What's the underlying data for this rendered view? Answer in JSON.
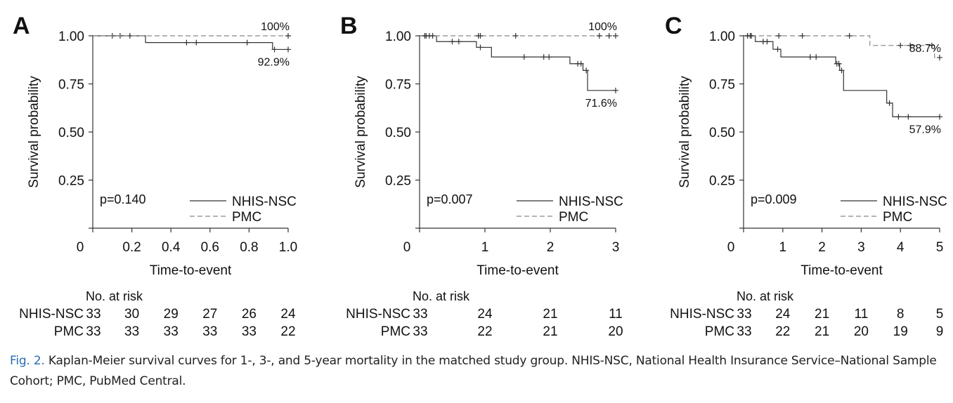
{
  "chart_data": [
    {
      "type": "line",
      "panel_label": "A",
      "ylabel": "Survival probability",
      "xlabel": "Time-to-event",
      "xlim": [
        0,
        1.0
      ],
      "ylim": [
        0,
        1.0
      ],
      "x_ticks": [
        "0",
        "0.2",
        "0.4",
        "0.6",
        "0.8",
        "1.0"
      ],
      "y_ticks": [
        "1.00",
        "0.75",
        "0.50",
        "0.25"
      ],
      "p_value": "p=0.140",
      "legend_position": "bottom-right",
      "series": [
        {
          "name": "NHIS-NSC",
          "style": "solid",
          "steps": [
            [
              0,
              1.0
            ],
            [
              0.27,
              0.965
            ],
            [
              0.92,
              0.929
            ],
            [
              1.0,
              0.929
            ]
          ],
          "censors": [
            [
              0.1,
              1.0
            ],
            [
              0.14,
              1.0
            ],
            [
              0.19,
              1.0
            ],
            [
              0.48,
              0.965
            ],
            [
              0.53,
              0.965
            ],
            [
              0.79,
              0.965
            ],
            [
              0.93,
              0.929
            ],
            [
              1.0,
              0.929
            ]
          ],
          "end_label": "92.9%"
        },
        {
          "name": "PMC",
          "style": "dashed",
          "steps": [
            [
              0,
              1.0
            ],
            [
              1.0,
              1.0
            ]
          ],
          "censors": [
            [
              1.0,
              1.0
            ]
          ],
          "end_label": "100%"
        }
      ],
      "risk_table": {
        "header": "No. at risk",
        "times": [
          0,
          0.2,
          0.4,
          0.6,
          0.8,
          1.0
        ],
        "rows": [
          {
            "label": "NHIS-NSC",
            "values": [
              "33",
              "30",
              "29",
              "27",
              "26",
              "24"
            ]
          },
          {
            "label": "PMC",
            "values": [
              "33",
              "33",
              "33",
              "33",
              "33",
              "22"
            ]
          }
        ]
      }
    },
    {
      "type": "line",
      "panel_label": "B",
      "ylabel": "Survival probability",
      "xlabel": "Time-to-event",
      "xlim": [
        0,
        3
      ],
      "ylim": [
        0,
        1.0
      ],
      "x_ticks": [
        "0",
        "1",
        "2",
        "3"
      ],
      "y_ticks": [
        "1.00",
        "0.75",
        "0.50",
        "0.25"
      ],
      "p_value": "p=0.007",
      "legend_position": "bottom-right",
      "series": [
        {
          "name": "NHIS-NSC",
          "style": "solid",
          "steps": [
            [
              0,
              1.0
            ],
            [
              0.26,
              0.97
            ],
            [
              0.87,
              0.94
            ],
            [
              1.1,
              0.89
            ],
            [
              2.3,
              0.855
            ],
            [
              2.5,
              0.82
            ],
            [
              2.57,
              0.716
            ],
            [
              3.0,
              0.716
            ]
          ],
          "censors": [
            [
              0.1,
              1.0
            ],
            [
              0.2,
              1.0
            ],
            [
              0.5,
              0.97
            ],
            [
              0.6,
              0.97
            ],
            [
              0.93,
              0.94
            ],
            [
              1.6,
              0.89
            ],
            [
              1.9,
              0.89
            ],
            [
              1.98,
              0.89
            ],
            [
              2.42,
              0.855
            ],
            [
              2.47,
              0.855
            ],
            [
              2.55,
              0.82
            ],
            [
              3.0,
              0.716
            ]
          ],
          "end_label": "71.6%"
        },
        {
          "name": "PMC",
          "style": "dashed",
          "steps": [
            [
              0,
              1.0
            ],
            [
              3.0,
              1.0
            ]
          ],
          "censors": [
            [
              0.08,
              1.0
            ],
            [
              0.15,
              1.0
            ],
            [
              0.9,
              1.0
            ],
            [
              0.93,
              1.0
            ],
            [
              1.47,
              1.0
            ],
            [
              2.75,
              1.0
            ],
            [
              2.9,
              1.0
            ],
            [
              3.0,
              1.0
            ]
          ],
          "end_label": "100%"
        }
      ],
      "risk_table": {
        "header": "No. at risk",
        "times": [
          0,
          1,
          2,
          3
        ],
        "rows": [
          {
            "label": "NHIS-NSC",
            "values": [
              "33",
              "24",
              "21",
              "11"
            ]
          },
          {
            "label": "PMC",
            "values": [
              "33",
              "22",
              "21",
              "20"
            ]
          }
        ]
      }
    },
    {
      "type": "line",
      "panel_label": "C",
      "ylabel": "Survival probability",
      "xlabel": "Time-to-event",
      "xlim": [
        0,
        5
      ],
      "ylim": [
        0,
        1.0
      ],
      "x_ticks": [
        "0",
        "1",
        "2",
        "3",
        "4",
        "5"
      ],
      "y_ticks": [
        "1.00",
        "0.75",
        "0.50",
        "0.25"
      ],
      "p_value": "p=0.009",
      "legend_position": "bottom-right",
      "series": [
        {
          "name": "NHIS-NSC",
          "style": "solid",
          "steps": [
            [
              0,
              1.0
            ],
            [
              0.3,
              0.97
            ],
            [
              0.75,
              0.93
            ],
            [
              0.95,
              0.89
            ],
            [
              2.35,
              0.855
            ],
            [
              2.45,
              0.82
            ],
            [
              2.55,
              0.716
            ],
            [
              3.65,
              0.65
            ],
            [
              3.8,
              0.579
            ],
            [
              5.0,
              0.579
            ]
          ],
          "censors": [
            [
              0.1,
              1.0
            ],
            [
              0.17,
              1.0
            ],
            [
              0.5,
              0.97
            ],
            [
              0.6,
              0.97
            ],
            [
              0.87,
              0.93
            ],
            [
              1.7,
              0.89
            ],
            [
              1.85,
              0.89
            ],
            [
              2.38,
              0.855
            ],
            [
              2.43,
              0.855
            ],
            [
              2.5,
              0.82
            ],
            [
              3.72,
              0.65
            ],
            [
              3.95,
              0.579
            ],
            [
              4.2,
              0.579
            ],
            [
              5.0,
              0.579
            ]
          ],
          "end_label": "57.9%"
        },
        {
          "name": "PMC",
          "style": "dashed",
          "steps": [
            [
              0,
              1.0
            ],
            [
              3.2,
              1.0
            ],
            [
              3.22,
              0.95
            ],
            [
              4.85,
              0.95
            ],
            [
              4.87,
              0.887
            ],
            [
              5.0,
              0.887
            ]
          ],
          "censors": [
            [
              0.1,
              1.0
            ],
            [
              0.2,
              1.0
            ],
            [
              0.9,
              1.0
            ],
            [
              1.5,
              1.0
            ],
            [
              2.7,
              1.0
            ],
            [
              4.0,
              0.95
            ],
            [
              4.25,
              0.95
            ],
            [
              4.8,
              0.95
            ],
            [
              5.0,
              0.887
            ]
          ],
          "end_label": "88.7%"
        }
      ],
      "risk_table": {
        "header": "No. at risk",
        "times": [
          0,
          1,
          2,
          3,
          4,
          5
        ],
        "rows": [
          {
            "label": "NHIS-NSC",
            "values": [
              "33",
              "24",
              "21",
              "11",
              "8",
              "5"
            ]
          },
          {
            "label": "PMC",
            "values": [
              "33",
              "22",
              "21",
              "20",
              "19",
              "9"
            ]
          }
        ]
      }
    }
  ],
  "caption": {
    "fig_label": "Fig. 2.",
    "text": " Kaplan-Meier survival curves for 1-, 3-, and 5-year mortality in the matched study group. NHIS-NSC, National Health Insurance Service–National Sample Cohort; PMC, PubMed Central."
  }
}
